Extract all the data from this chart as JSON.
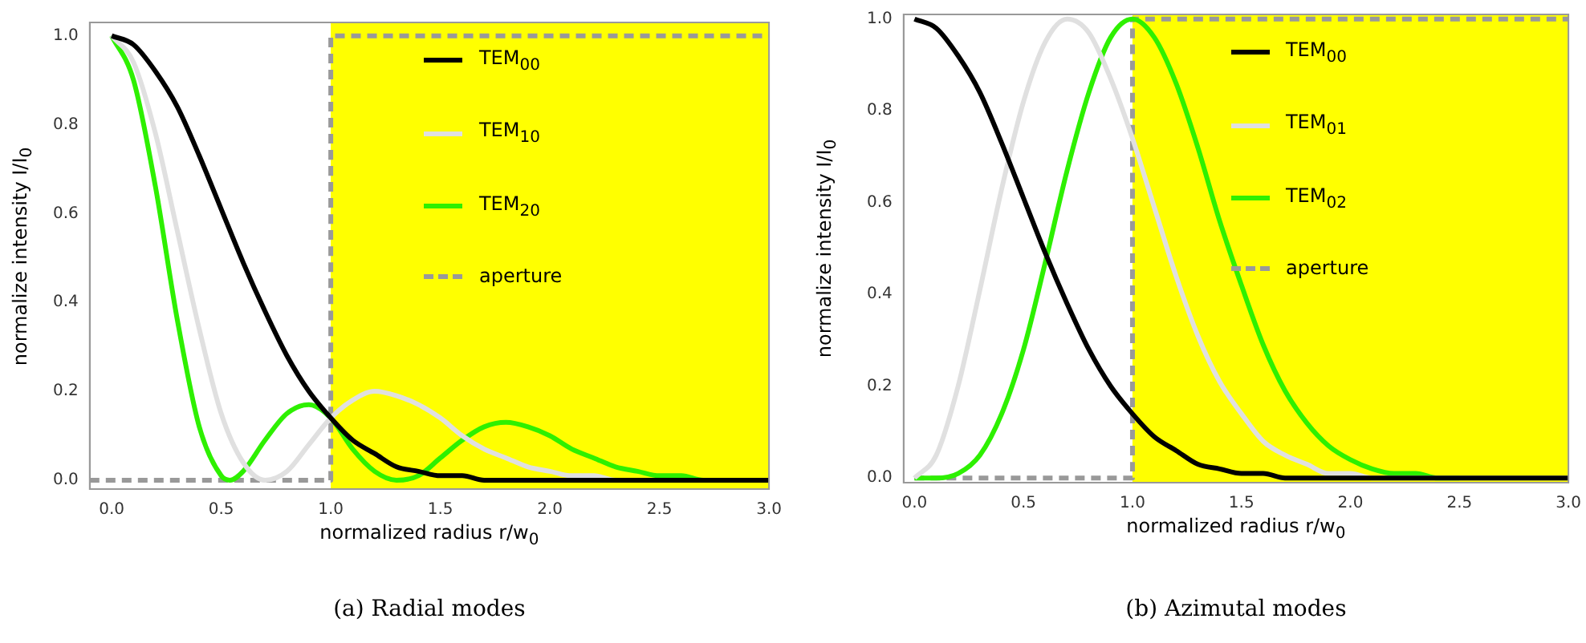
{
  "chart_data": [
    {
      "type": "line",
      "xlabel": "normalized radius r/w$_{0}$",
      "ylabel": "normalize intensity I/I$_{0}$",
      "annotations": [
        "(a) Radial modes"
      ],
      "xlim": [
        -0.1,
        3.0
      ],
      "ylim": [
        -0.02,
        1.03
      ],
      "xticks": [
        {
          "value": 0,
          "label": "0.0"
        },
        {
          "value": 0.5,
          "label": "0.5"
        },
        {
          "value": 1,
          "label": "1.0"
        },
        {
          "value": 1.5,
          "label": "1.5"
        },
        {
          "value": 2,
          "label": "2.0"
        },
        {
          "value": 2.5,
          "label": "2.5"
        },
        {
          "value": 3,
          "label": "3.0"
        }
      ],
      "yticks": [
        {
          "value": 0,
          "label": "0.0"
        },
        {
          "value": 0.2,
          "label": "0.2"
        },
        {
          "value": 0.4,
          "label": "0.4"
        },
        {
          "value": 0.6,
          "label": "0.6"
        },
        {
          "value": 0.8,
          "label": "0.8"
        },
        {
          "value": 1,
          "label": "1.0"
        }
      ],
      "grid": false,
      "legend": "top",
      "marker": "none",
      "bands": [
        {
          "axis": "x",
          "from": 1,
          "to": 3,
          "color": "#ffff00"
        }
      ],
      "series": [
        {
          "name": "TEM$_{00}$",
          "color": "#000000",
          "x": [
            0,
            0.1,
            0.2,
            0.3,
            0.4,
            0.5,
            0.6,
            0.7,
            0.8,
            0.9,
            1.0,
            1.1,
            1.2,
            1.3,
            1.4,
            1.5,
            1.6,
            1.7,
            1.8,
            1.9,
            2.0,
            2.5,
            3.0
          ],
          "values": [
            1,
            0.98,
            0.92,
            0.84,
            0.73,
            0.61,
            0.49,
            0.38,
            0.28,
            0.2,
            0.14,
            0.09,
            0.06,
            0.03,
            0.02,
            0.01,
            0.01,
            0,
            0,
            0,
            0,
            0,
            0
          ]
        },
        {
          "name": "TEM$_{10}$",
          "color": "#e0e0e0",
          "x": [
            0,
            0.1,
            0.2,
            0.3,
            0.4,
            0.5,
            0.6,
            0.7,
            0.8,
            0.9,
            1.0,
            1.1,
            1.2,
            1.3,
            1.4,
            1.5,
            1.6,
            1.7,
            1.8,
            1.9,
            2.0,
            2.1,
            2.2,
            2.3,
            2.5,
            3.0
          ],
          "values": [
            1,
            0.94,
            0.78,
            0.56,
            0.34,
            0.15,
            0.04,
            0,
            0.02,
            0.08,
            0.14,
            0.18,
            0.2,
            0.19,
            0.17,
            0.14,
            0.1,
            0.07,
            0.05,
            0.03,
            0.02,
            0.01,
            0.01,
            0,
            0,
            0
          ]
        },
        {
          "name": "TEM$_{20}$",
          "color": "#2ef000",
          "x": [
            0,
            0.1,
            0.2,
            0.3,
            0.4,
            0.5,
            0.54,
            0.6,
            0.7,
            0.8,
            0.9,
            1.0,
            1.1,
            1.2,
            1.3,
            1.4,
            1.5,
            1.6,
            1.7,
            1.8,
            1.9,
            2.0,
            2.1,
            2.2,
            2.3,
            2.4,
            2.5,
            2.6,
            2.7,
            2.8,
            3.0
          ],
          "values": [
            1,
            0.9,
            0.66,
            0.36,
            0.12,
            0.01,
            0,
            0.02,
            0.09,
            0.15,
            0.17,
            0.14,
            0.07,
            0.02,
            0,
            0.01,
            0.05,
            0.09,
            0.12,
            0.13,
            0.12,
            0.1,
            0.07,
            0.05,
            0.03,
            0.02,
            0.01,
            0.01,
            0,
            0,
            0
          ]
        },
        {
          "name": "aperture",
          "color": "#999999",
          "line_style": "dashed",
          "x": [
            -0.1,
            1,
            1,
            3
          ],
          "values": [
            0,
            0,
            1,
            1
          ]
        }
      ]
    },
    {
      "type": "line",
      "xlabel": "normalized radius r/w$_{0}$",
      "ylabel": "normalize intensity I/I$_{0}$",
      "annotations": [
        "(b) Azimutal modes"
      ],
      "xlim": [
        -0.05,
        3.0
      ],
      "ylim": [
        -0.01,
        1.01
      ],
      "xticks": [
        {
          "value": 0,
          "label": "0.0"
        },
        {
          "value": 0.5,
          "label": "0.5"
        },
        {
          "value": 1,
          "label": "1.0"
        },
        {
          "value": 1.5,
          "label": "1.5"
        },
        {
          "value": 2,
          "label": "2.0"
        },
        {
          "value": 2.5,
          "label": "2.5"
        },
        {
          "value": 3,
          "label": "3.0"
        }
      ],
      "yticks": [
        {
          "value": 0,
          "label": "0.0"
        },
        {
          "value": 0.2,
          "label": "0.2"
        },
        {
          "value": 0.4,
          "label": "0.4"
        },
        {
          "value": 0.6,
          "label": "0.6"
        },
        {
          "value": 0.8,
          "label": "0.8"
        },
        {
          "value": 1,
          "label": "1.0"
        }
      ],
      "grid": false,
      "legend": "top",
      "marker": "none",
      "bands": [
        {
          "axis": "x",
          "from": 1,
          "to": 3,
          "color": "#ffff00"
        }
      ],
      "series": [
        {
          "name": "TEM$_{00}$",
          "color": "#000000",
          "x": [
            0,
            0.1,
            0.2,
            0.3,
            0.4,
            0.5,
            0.6,
            0.7,
            0.8,
            0.9,
            1.0,
            1.1,
            1.2,
            1.3,
            1.4,
            1.5,
            1.6,
            1.7,
            1.8,
            1.9,
            2.0,
            2.5,
            3.0
          ],
          "values": [
            1,
            0.98,
            0.92,
            0.84,
            0.73,
            0.61,
            0.49,
            0.38,
            0.28,
            0.2,
            0.14,
            0.09,
            0.06,
            0.03,
            0.02,
            0.01,
            0.01,
            0,
            0,
            0,
            0,
            0,
            0
          ]
        },
        {
          "name": "TEM$_{01}$",
          "color": "#e0e0e0",
          "x": [
            0,
            0.1,
            0.2,
            0.3,
            0.4,
            0.5,
            0.6,
            0.7,
            0.8,
            0.9,
            1.0,
            1.1,
            1.2,
            1.3,
            1.4,
            1.5,
            1.6,
            1.7,
            1.8,
            1.9,
            2.0,
            2.1,
            2.2,
            2.4,
            3.0
          ],
          "values": [
            0,
            0.05,
            0.2,
            0.41,
            0.63,
            0.82,
            0.95,
            1,
            0.97,
            0.87,
            0.74,
            0.59,
            0.44,
            0.31,
            0.21,
            0.14,
            0.08,
            0.05,
            0.03,
            0.01,
            0.01,
            0,
            0,
            0,
            0
          ]
        },
        {
          "name": "TEM$_{02}$",
          "color": "#2ef000",
          "x": [
            0,
            0.1,
            0.2,
            0.3,
            0.4,
            0.5,
            0.6,
            0.7,
            0.8,
            0.9,
            1.0,
            1.1,
            1.2,
            1.3,
            1.4,
            1.5,
            1.6,
            1.7,
            1.8,
            1.9,
            2.0,
            2.1,
            2.2,
            2.3,
            2.4,
            2.5
          ],
          "values": [
            0,
            0,
            0.01,
            0.05,
            0.14,
            0.28,
            0.47,
            0.67,
            0.84,
            0.96,
            1,
            0.96,
            0.86,
            0.72,
            0.56,
            0.42,
            0.29,
            0.19,
            0.12,
            0.07,
            0.04,
            0.02,
            0.01,
            0.01,
            0,
            0
          ]
        },
        {
          "name": "aperture",
          "color": "#999999",
          "line_style": "dashed",
          "x": [
            0,
            1,
            1,
            3
          ],
          "values": [
            0,
            0,
            1,
            1
          ]
        }
      ]
    }
  ]
}
